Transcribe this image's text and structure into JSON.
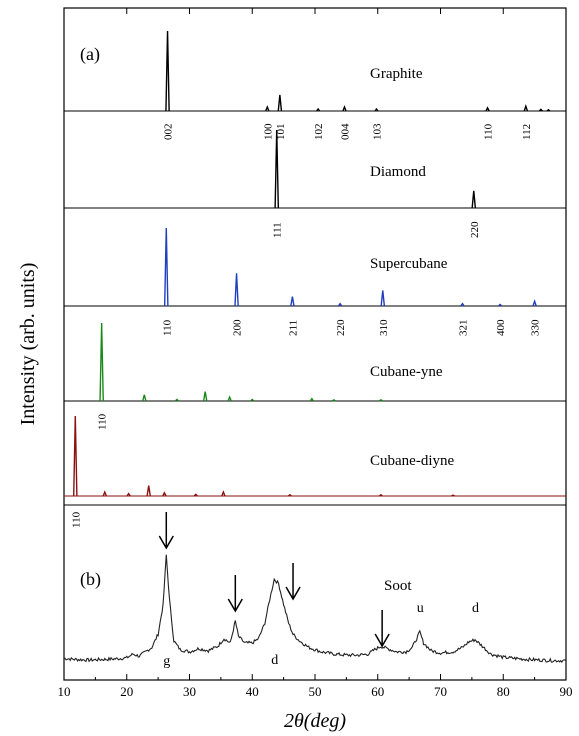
{
  "chart_data": {
    "type": "line",
    "ylabel": "Intensity (arb. units)",
    "xlabel": "2θ(deg)",
    "xlim": [
      10,
      90
    ],
    "xticks": [
      10,
      20,
      30,
      40,
      50,
      60,
      70,
      80,
      90
    ],
    "grid": false,
    "panels": [
      {
        "label": "(a)"
      },
      {
        "label": "(b)"
      }
    ],
    "simulated": [
      {
        "name": "Graphite",
        "color": "#000000",
        "peaks": [
          {
            "x": 26.5,
            "h": 1.0,
            "label": "002"
          },
          {
            "x": 42.4,
            "h": 0.05,
            "label": "100"
          },
          {
            "x": 44.4,
            "h": 0.2,
            "label": "101"
          },
          {
            "x": 50.5,
            "h": 0.025,
            "label": "102"
          },
          {
            "x": 54.7,
            "h": 0.05,
            "label": "004"
          },
          {
            "x": 59.8,
            "h": 0.025,
            "label": "103"
          },
          {
            "x": 77.5,
            "h": 0.04,
            "label": "110"
          },
          {
            "x": 83.6,
            "h": 0.06,
            "label": "112"
          },
          {
            "x": 86.0,
            "h": 0.02,
            "label": ""
          },
          {
            "x": 87.2,
            "h": 0.015,
            "label": ""
          }
        ]
      },
      {
        "name": "Diamond",
        "color": "#000000",
        "peaks": [
          {
            "x": 43.9,
            "h": 1.0,
            "label": "111"
          },
          {
            "x": 75.3,
            "h": 0.22,
            "label": "220"
          }
        ]
      },
      {
        "name": "Supercubane",
        "color": "#1f3fbf",
        "peaks": [
          {
            "x": 26.3,
            "h": 1.0,
            "label": "110"
          },
          {
            "x": 37.5,
            "h": 0.42,
            "label": "200"
          },
          {
            "x": 46.4,
            "h": 0.12,
            "label": "211"
          },
          {
            "x": 54.0,
            "h": 0.03,
            "label": "220"
          },
          {
            "x": 60.8,
            "h": 0.2,
            "label": "310"
          },
          {
            "x": 73.5,
            "h": 0.03,
            "label": "321"
          },
          {
            "x": 79.5,
            "h": 0.02,
            "label": "400"
          },
          {
            "x": 85.0,
            "h": 0.06,
            "label": "330"
          }
        ]
      },
      {
        "name": "Cubane-yne",
        "color": "#1a8a1a",
        "peaks": [
          {
            "x": 16.0,
            "h": 1.0,
            "label": "110"
          },
          {
            "x": 22.8,
            "h": 0.08,
            "label": ""
          },
          {
            "x": 28.0,
            "h": 0.02,
            "label": ""
          },
          {
            "x": 32.5,
            "h": 0.12,
            "label": ""
          },
          {
            "x": 36.4,
            "h": 0.05,
            "label": ""
          },
          {
            "x": 40.0,
            "h": 0.02,
            "label": ""
          },
          {
            "x": 49.5,
            "h": 0.03,
            "label": ""
          },
          {
            "x": 53.0,
            "h": 0.015,
            "label": ""
          },
          {
            "x": 60.5,
            "h": 0.015,
            "label": ""
          }
        ]
      },
      {
        "name": "Cubane-diyne",
        "color": "#8b1010",
        "peaks": [
          {
            "x": 11.8,
            "h": 1.0,
            "label": "110"
          },
          {
            "x": 16.5,
            "h": 0.05,
            "label": ""
          },
          {
            "x": 20.3,
            "h": 0.03,
            "label": ""
          },
          {
            "x": 23.5,
            "h": 0.13,
            "label": ""
          },
          {
            "x": 26.0,
            "h": 0.04,
            "label": ""
          },
          {
            "x": 31.0,
            "h": 0.02,
            "label": ""
          },
          {
            "x": 35.4,
            "h": 0.05,
            "label": ""
          },
          {
            "x": 46.0,
            "h": 0.015,
            "label": ""
          },
          {
            "x": 60.5,
            "h": 0.015,
            "label": ""
          },
          {
            "x": 72.0,
            "h": 0.01,
            "label": ""
          }
        ]
      }
    ],
    "experimental": {
      "name": "Soot",
      "color": "#222222",
      "points": [
        [
          10,
          0.06
        ],
        [
          12,
          0.05
        ],
        [
          14,
          0.045
        ],
        [
          16,
          0.05
        ],
        [
          18,
          0.055
        ],
        [
          20,
          0.065
        ],
        [
          21,
          0.1
        ],
        [
          22,
          0.08
        ],
        [
          23,
          0.12
        ],
        [
          24,
          0.16
        ],
        [
          25,
          0.28
        ],
        [
          25.8,
          0.55
        ],
        [
          26.3,
          1.0
        ],
        [
          26.8,
          0.6
        ],
        [
          27.5,
          0.22
        ],
        [
          28.5,
          0.14
        ],
        [
          30,
          0.12
        ],
        [
          31.5,
          0.15
        ],
        [
          33,
          0.13
        ],
        [
          34.5,
          0.17
        ],
        [
          35.5,
          0.24
        ],
        [
          36.5,
          0.2
        ],
        [
          37.3,
          0.4
        ],
        [
          37.8,
          0.26
        ],
        [
          38.8,
          0.2
        ],
        [
          40,
          0.2
        ],
        [
          41,
          0.24
        ],
        [
          42,
          0.38
        ],
        [
          42.8,
          0.6
        ],
        [
          43.5,
          0.78
        ],
        [
          44.2,
          0.74
        ],
        [
          45,
          0.55
        ],
        [
          45.8,
          0.38
        ],
        [
          46.5,
          0.28
        ],
        [
          47.5,
          0.22
        ],
        [
          49,
          0.16
        ],
        [
          51,
          0.12
        ],
        [
          53,
          0.1
        ],
        [
          55,
          0.09
        ],
        [
          57,
          0.09
        ],
        [
          58.5,
          0.1
        ],
        [
          59.5,
          0.14
        ],
        [
          60.5,
          0.17
        ],
        [
          61.5,
          0.15
        ],
        [
          63,
          0.12
        ],
        [
          64.5,
          0.12
        ],
        [
          65.5,
          0.16
        ],
        [
          66.2,
          0.24
        ],
        [
          66.7,
          0.3
        ],
        [
          67.3,
          0.2
        ],
        [
          68.5,
          0.13
        ],
        [
          70,
          0.11
        ],
        [
          72,
          0.12
        ],
        [
          73.5,
          0.16
        ],
        [
          74.5,
          0.21
        ],
        [
          75.5,
          0.23
        ],
        [
          76.5,
          0.18
        ],
        [
          78,
          0.1
        ],
        [
          80,
          0.07
        ],
        [
          82,
          0.06
        ],
        [
          84,
          0.05
        ],
        [
          86,
          0.045
        ],
        [
          88,
          0.04
        ],
        [
          90,
          0.04
        ]
      ],
      "arrows": [
        26.3,
        37.3,
        46.5,
        60.7
      ],
      "peak_marks": [
        {
          "x": 26.3,
          "label": "g"
        },
        {
          "x": 43.5,
          "label": "d"
        },
        {
          "x": 66.7,
          "label": "u"
        },
        {
          "x": 75.5,
          "label": "d"
        }
      ]
    }
  }
}
